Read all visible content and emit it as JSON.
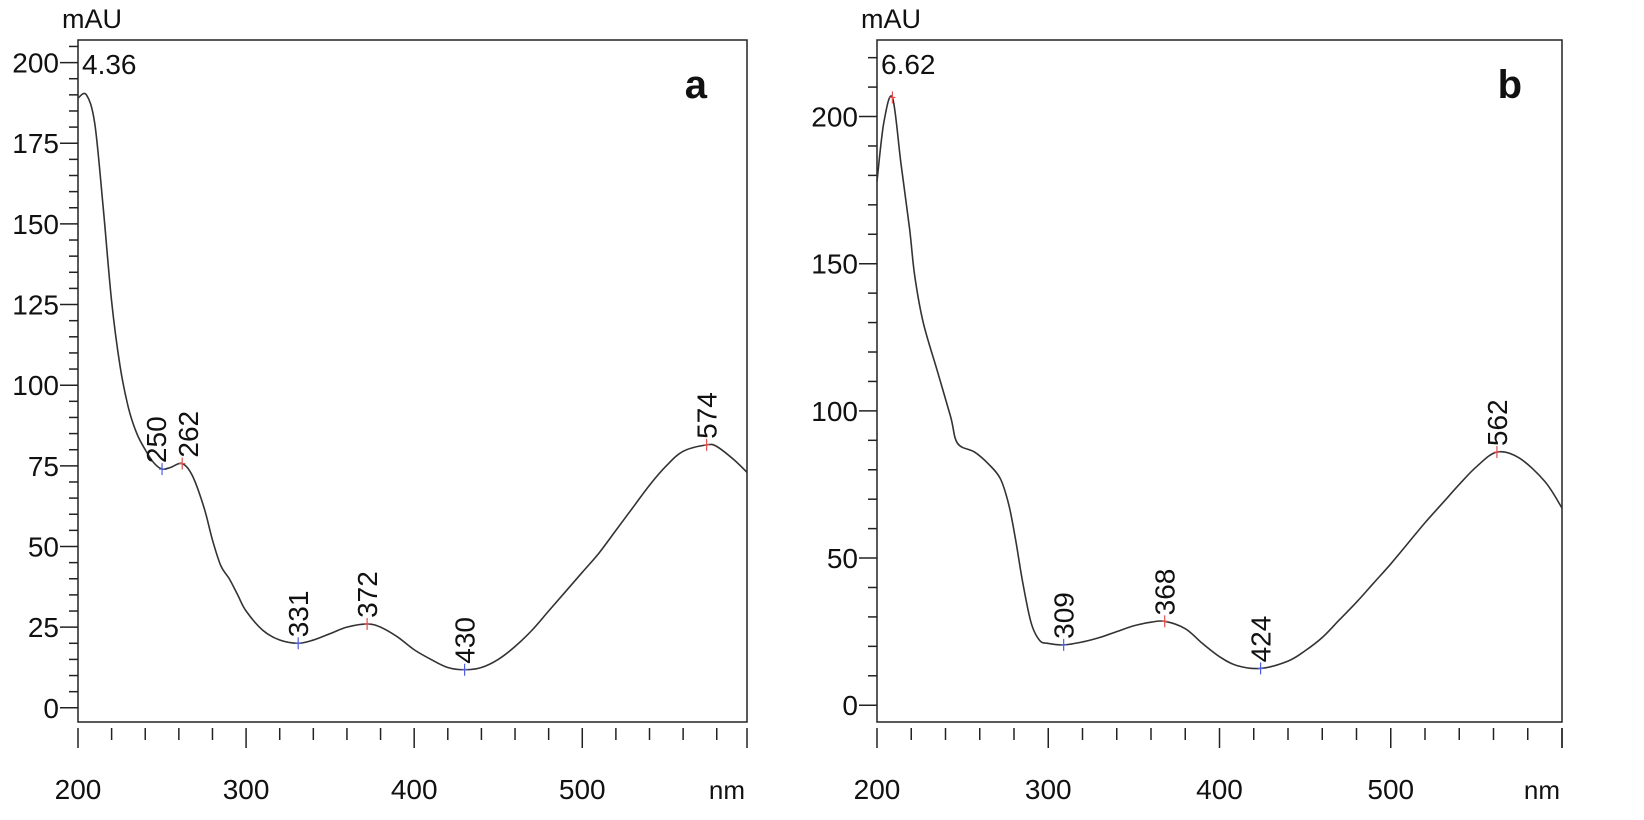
{
  "chart_data": [
    {
      "type": "line",
      "panel_letter": "a",
      "ylabel": "mAU",
      "xlabel": "nm",
      "corner_label": "4.36",
      "xlim": [
        200,
        598
      ],
      "ylim": [
        -4.4,
        207
      ],
      "xticks": [
        200,
        300,
        400,
        500
      ],
      "yticks": [
        0,
        25,
        50,
        75,
        100,
        125,
        150,
        175,
        200
      ],
      "x_minor_step": 20,
      "y_minor_step": 5,
      "grid": false,
      "line_color": "#333333",
      "x": [
        200,
        205,
        210,
        215,
        220,
        225,
        230,
        235,
        240,
        245,
        250,
        255,
        262,
        268,
        275,
        280,
        285,
        290,
        295,
        300,
        310,
        320,
        331,
        340,
        350,
        360,
        372,
        380,
        390,
        400,
        410,
        420,
        430,
        440,
        450,
        460,
        470,
        480,
        490,
        500,
        510,
        520,
        530,
        540,
        550,
        560,
        574,
        580,
        590,
        598
      ],
      "y": [
        189,
        190,
        181,
        155,
        126,
        106,
        93,
        85,
        80,
        76,
        74,
        74.5,
        75.7,
        72,
        62,
        52,
        44,
        40,
        35,
        30,
        24,
        21,
        20,
        21,
        23,
        25,
        26,
        25,
        22,
        18,
        15,
        12.5,
        11.8,
        12.5,
        15,
        19,
        24,
        30,
        36,
        42,
        48,
        55,
        62,
        69,
        75,
        79.5,
        81.5,
        81,
        77,
        73
      ],
      "peaks": [
        {
          "label": "250",
          "x": 250,
          "y": 74,
          "kind": "min"
        },
        {
          "label": "262",
          "x": 262,
          "y": 75.7,
          "kind": "max"
        },
        {
          "label": "331",
          "x": 331,
          "y": 20,
          "kind": "min"
        },
        {
          "label": "372",
          "x": 372,
          "y": 26,
          "kind": "max"
        },
        {
          "label": "430",
          "x": 430,
          "y": 11.8,
          "kind": "min"
        },
        {
          "label": "574",
          "x": 574,
          "y": 81.5,
          "kind": "max"
        }
      ]
    },
    {
      "type": "line",
      "panel_letter": "b",
      "ylabel": "mAU",
      "xlabel": "nm",
      "corner_label": "6.62",
      "xlim": [
        200,
        600
      ],
      "ylim": [
        -5.7,
        226
      ],
      "xticks": [
        200,
        300,
        400,
        500
      ],
      "yticks": [
        0,
        50,
        100,
        150,
        200
      ],
      "x_minor_step": 20,
      "y_minor_step": 10,
      "grid": false,
      "line_color": "#333333",
      "x": [
        200,
        204,
        209,
        214,
        219,
        222,
        227,
        235,
        243,
        247,
        257,
        265,
        272,
        277,
        281,
        285,
        290,
        295,
        300,
        309,
        320,
        330,
        340,
        350,
        360,
        368,
        380,
        390,
        400,
        410,
        424,
        440,
        450,
        460,
        470,
        480,
        490,
        500,
        510,
        520,
        530,
        540,
        550,
        562,
        575,
        590,
        600
      ],
      "y": [
        178,
        198,
        206.5,
        184,
        162,
        146,
        130,
        114,
        98,
        89,
        86,
        82,
        77,
        68,
        56,
        42,
        28,
        22,
        21,
        20.5,
        21.5,
        23,
        25,
        27,
        28.2,
        28.5,
        26,
        21,
        16.5,
        13.5,
        12.5,
        15,
        18.5,
        23,
        29,
        35,
        41.5,
        48,
        55,
        62,
        68.5,
        75,
        81,
        86,
        84,
        76,
        67
      ],
      "peaks": [
        {
          "label": "",
          "x": 209,
          "y": 206.5,
          "kind": "max"
        },
        {
          "label": "309",
          "x": 309,
          "y": 20.5,
          "kind": "min"
        },
        {
          "label": "368",
          "x": 368,
          "y": 28.5,
          "kind": "max"
        },
        {
          "label": "424",
          "x": 424,
          "y": 12.5,
          "kind": "min"
        },
        {
          "label": "562",
          "x": 562,
          "y": 86,
          "kind": "max"
        }
      ]
    }
  ],
  "colors": {
    "max_marker": "#e05050",
    "min_marker": "#5060e0",
    "axis": "#222222"
  }
}
